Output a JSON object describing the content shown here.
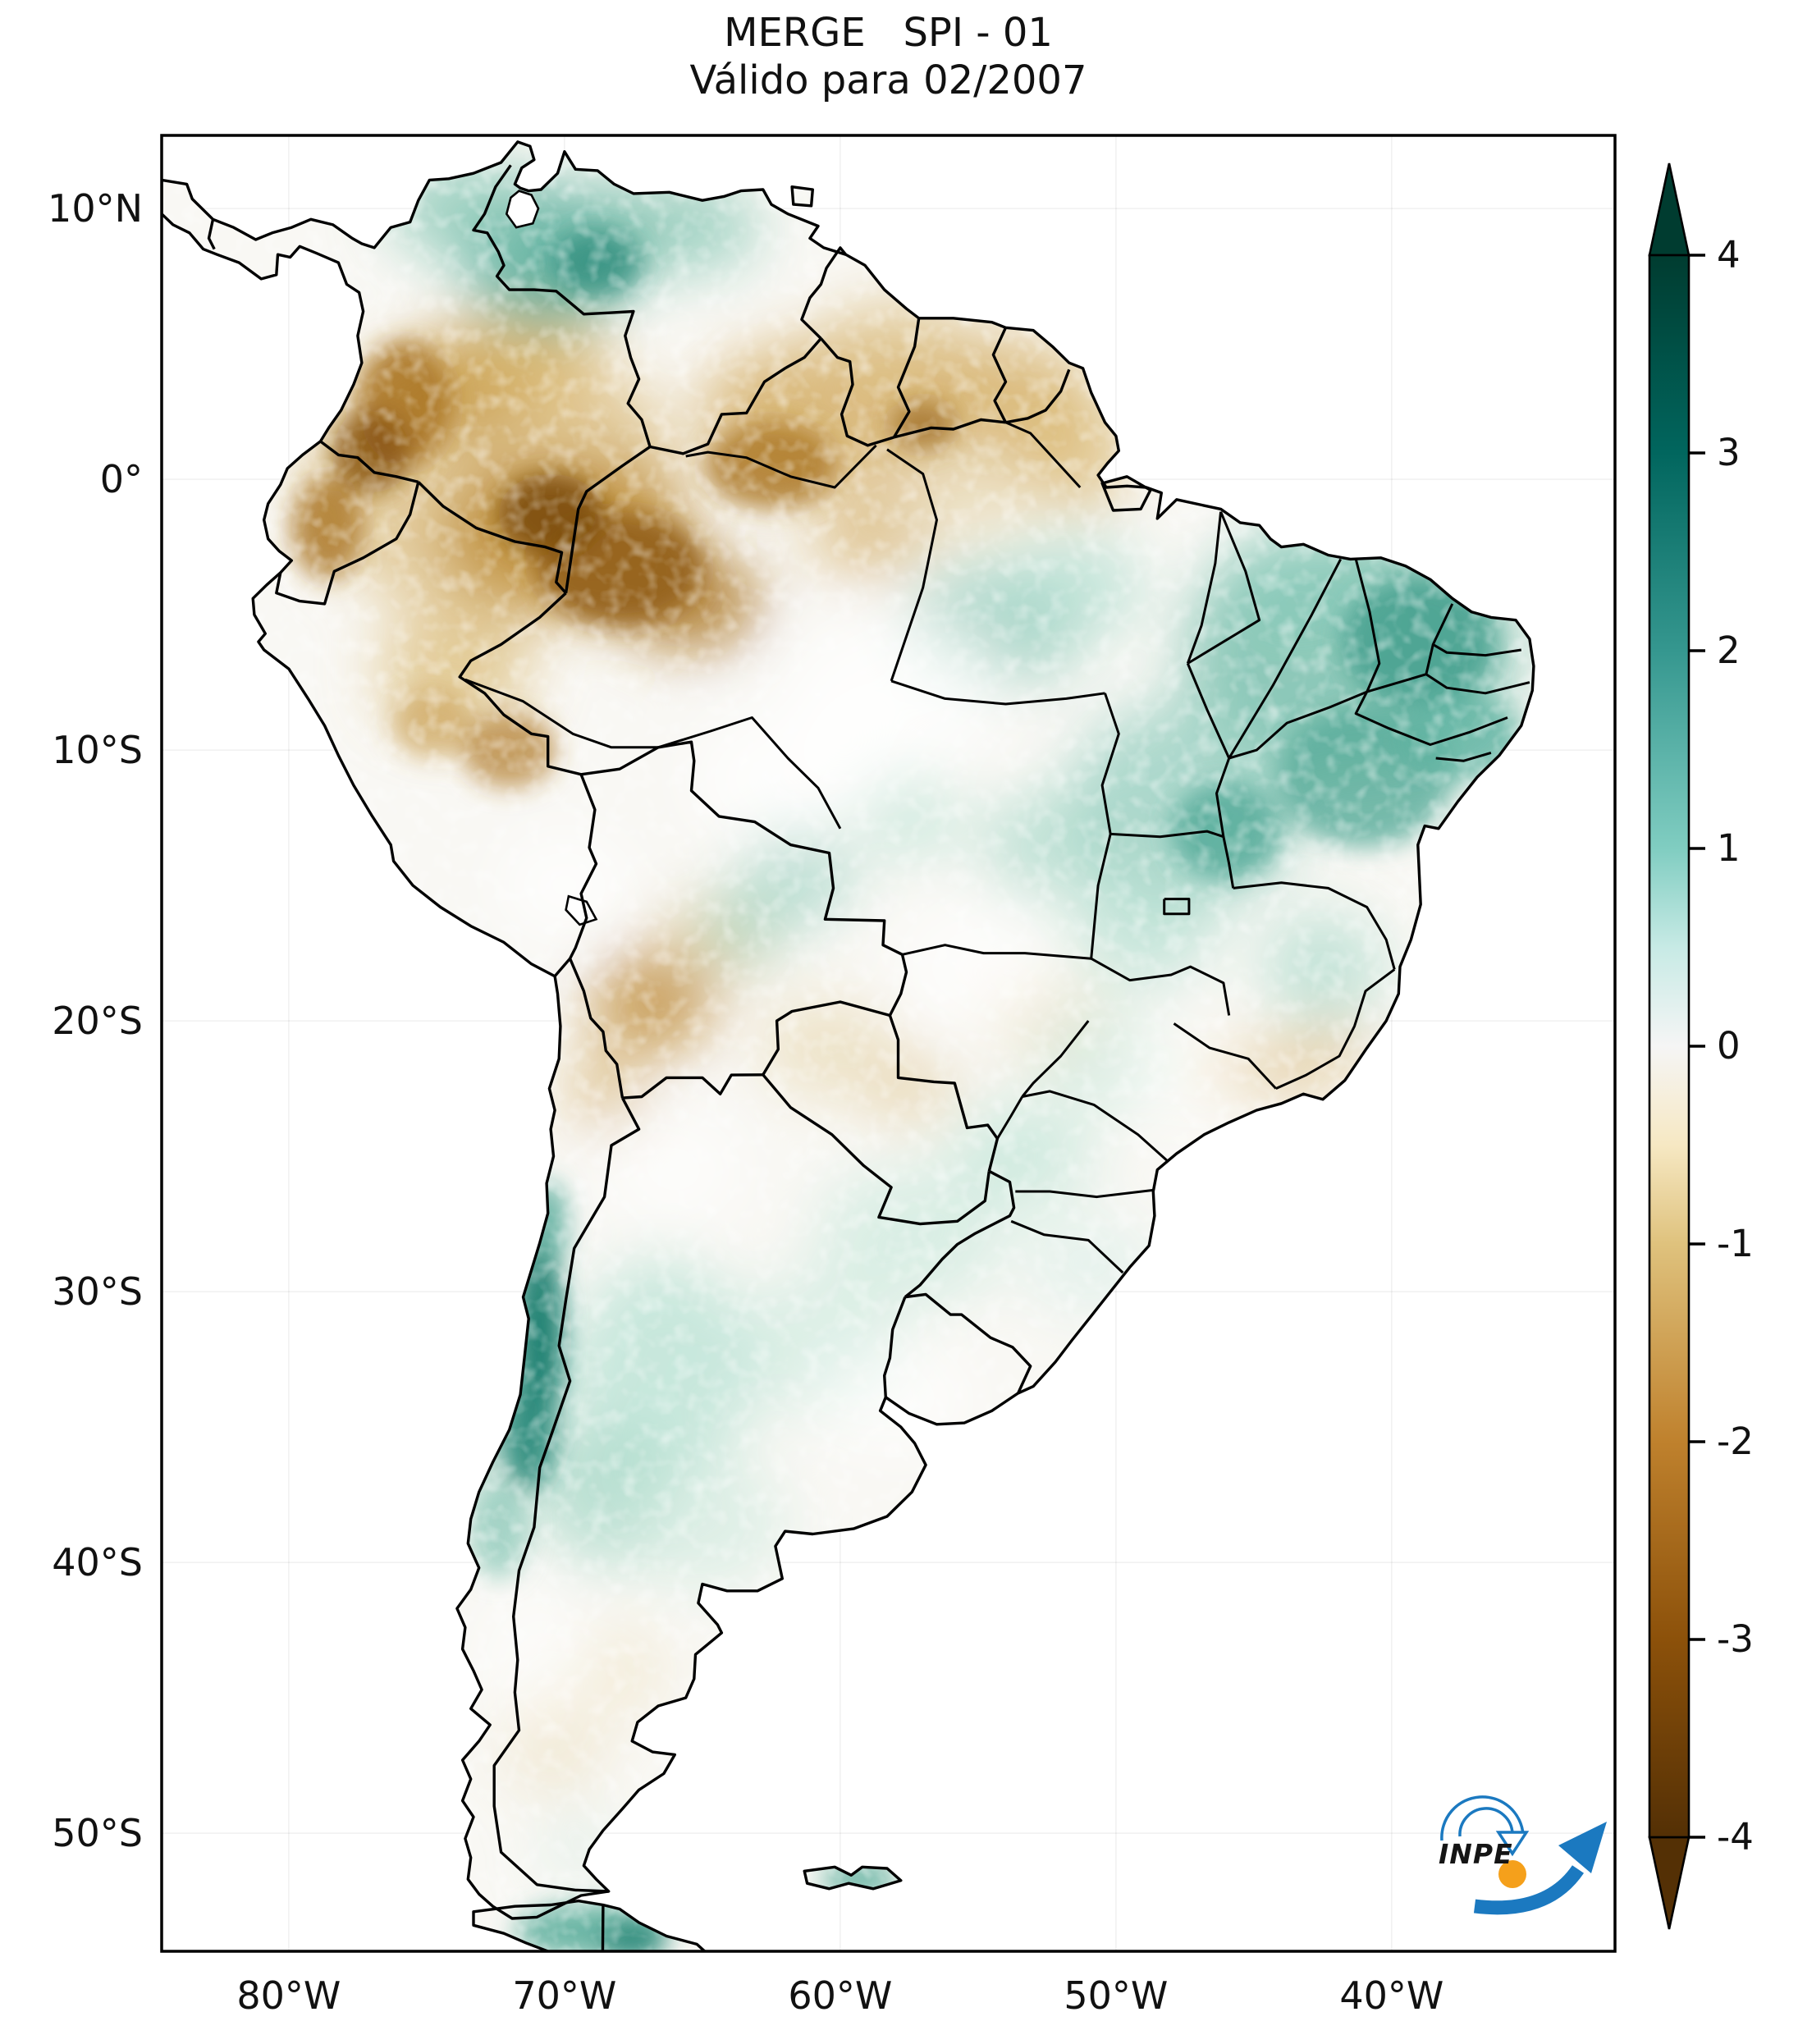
{
  "title": {
    "line1": "MERGE   SPI - 01",
    "line2": "Válido para 02/2007"
  },
  "axes": {
    "lat_ticks": [
      {
        "deg": 10,
        "label": "10°N"
      },
      {
        "deg": 0,
        "label": "0°"
      },
      {
        "deg": -10,
        "label": "10°S"
      },
      {
        "deg": -20,
        "label": "20°S"
      },
      {
        "deg": -30,
        "label": "30°S"
      },
      {
        "deg": -40,
        "label": "40°S"
      },
      {
        "deg": -50,
        "label": "50°S"
      }
    ],
    "lon_ticks": [
      {
        "deg": -80,
        "label": "80°W"
      },
      {
        "deg": -70,
        "label": "70°W"
      },
      {
        "deg": -60,
        "label": "60°W"
      },
      {
        "deg": -50,
        "label": "50°W"
      },
      {
        "deg": -40,
        "label": "40°W"
      }
    ]
  },
  "colorbar": {
    "range": [
      -4,
      4
    ],
    "colormap": "BrBG",
    "ticks": [
      {
        "value": 4,
        "label": "4"
      },
      {
        "value": 3,
        "label": "3"
      },
      {
        "value": 2,
        "label": "2"
      },
      {
        "value": 1,
        "label": "1"
      },
      {
        "value": 0,
        "label": "0"
      },
      {
        "value": -1,
        "label": "-1"
      },
      {
        "value": -2,
        "label": "-2"
      },
      {
        "value": -3,
        "label": "-3"
      },
      {
        "value": -4,
        "label": "-4"
      }
    ],
    "stops": [
      {
        "value": 4,
        "color": "#003c30"
      },
      {
        "value": 3,
        "color": "#01665e"
      },
      {
        "value": 2,
        "color": "#35978f"
      },
      {
        "value": 1,
        "color": "#80cdc1"
      },
      {
        "value": 0.5,
        "color": "#c7eae5"
      },
      {
        "value": 0,
        "color": "#f5f5f5"
      },
      {
        "value": -0.5,
        "color": "#f6e8c3"
      },
      {
        "value": -1,
        "color": "#dfc27d"
      },
      {
        "value": -2,
        "color": "#bf812d"
      },
      {
        "value": -3,
        "color": "#8c510a"
      },
      {
        "value": -4,
        "color": "#543005"
      }
    ]
  },
  "logo": {
    "text": "INPE",
    "blue": "#1b79c0",
    "orange": "#f5a01b"
  }
}
